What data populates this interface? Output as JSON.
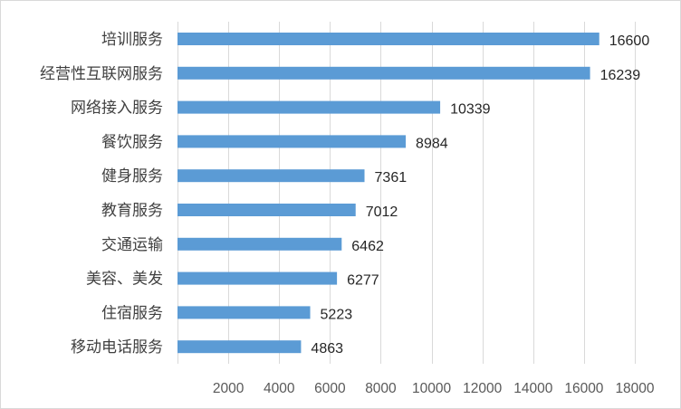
{
  "chart_data": {
    "type": "bar",
    "orientation": "horizontal",
    "categories": [
      "培训服务",
      "经营性互联网服务",
      "网络接入服务",
      "餐饮服务",
      "健身服务",
      "教育服务",
      "交通运输",
      "美容、美发",
      "住宿服务",
      "移动电话服务"
    ],
    "values": [
      16600,
      16239,
      10339,
      8984,
      7361,
      7012,
      6462,
      6277,
      5223,
      4863
    ],
    "x_ticks": [
      2000,
      4000,
      6000,
      8000,
      10000,
      12000,
      14000,
      16000,
      18000
    ],
    "xlim": [
      0,
      18000
    ],
    "grid": true,
    "legend": "none",
    "bar_color": "#5b9bd5",
    "title": "",
    "xlabel": "",
    "ylabel": ""
  }
}
